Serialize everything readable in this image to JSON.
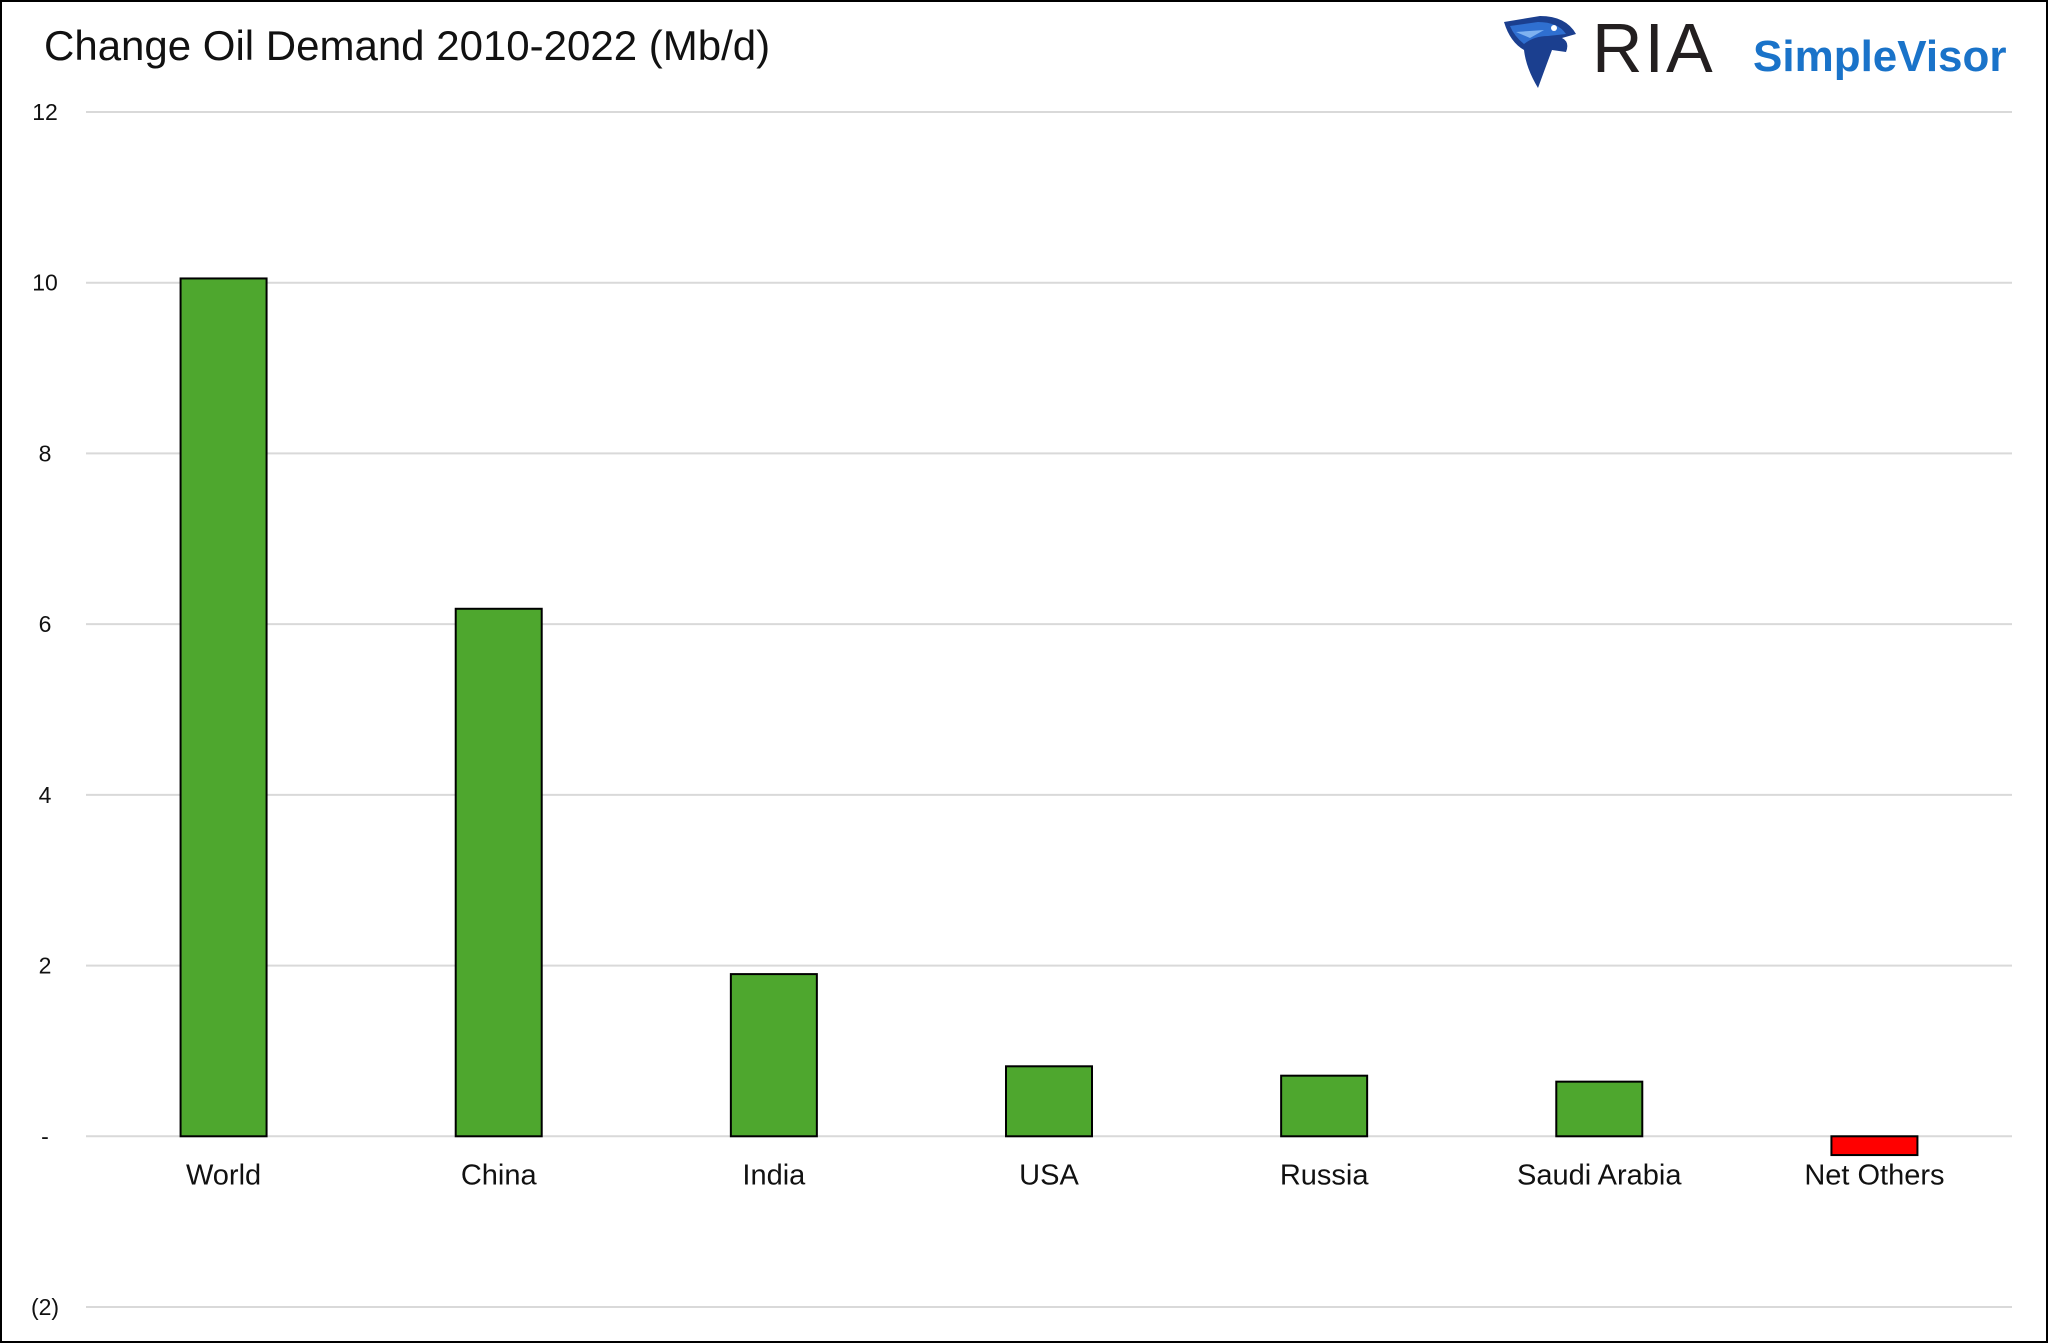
{
  "chart_data": {
    "type": "bar",
    "title": "Change Oil Demand 2010-2022 (Mb/d)",
    "xlabel": "",
    "ylabel": "",
    "categories": [
      "World",
      "China",
      "India",
      "USA",
      "Russia",
      "Saudi Arabia",
      "Net Others"
    ],
    "values": [
      10.05,
      6.18,
      1.9,
      0.82,
      0.71,
      0.64,
      -0.22
    ],
    "ylim": [
      -2,
      12
    ],
    "yticks": [
      12,
      10,
      8,
      6,
      4,
      2,
      0,
      -2
    ],
    "ytick_labels": [
      "12",
      "10",
      "8",
      "6",
      "4",
      "2",
      "-",
      "(2)"
    ],
    "grid": true,
    "legend": "none",
    "colors": {
      "positive": "#4ea72e",
      "negative": "#ff0000",
      "outline": "#000000",
      "grid": "#d9d9d9"
    }
  },
  "logo": {
    "brand": "RIA",
    "product": "SimpleVisor",
    "icon": "eagle-head-icon",
    "colors": {
      "brand": "#231f20",
      "product": "#1a73c9",
      "icon": "#1b3f8f"
    }
  }
}
